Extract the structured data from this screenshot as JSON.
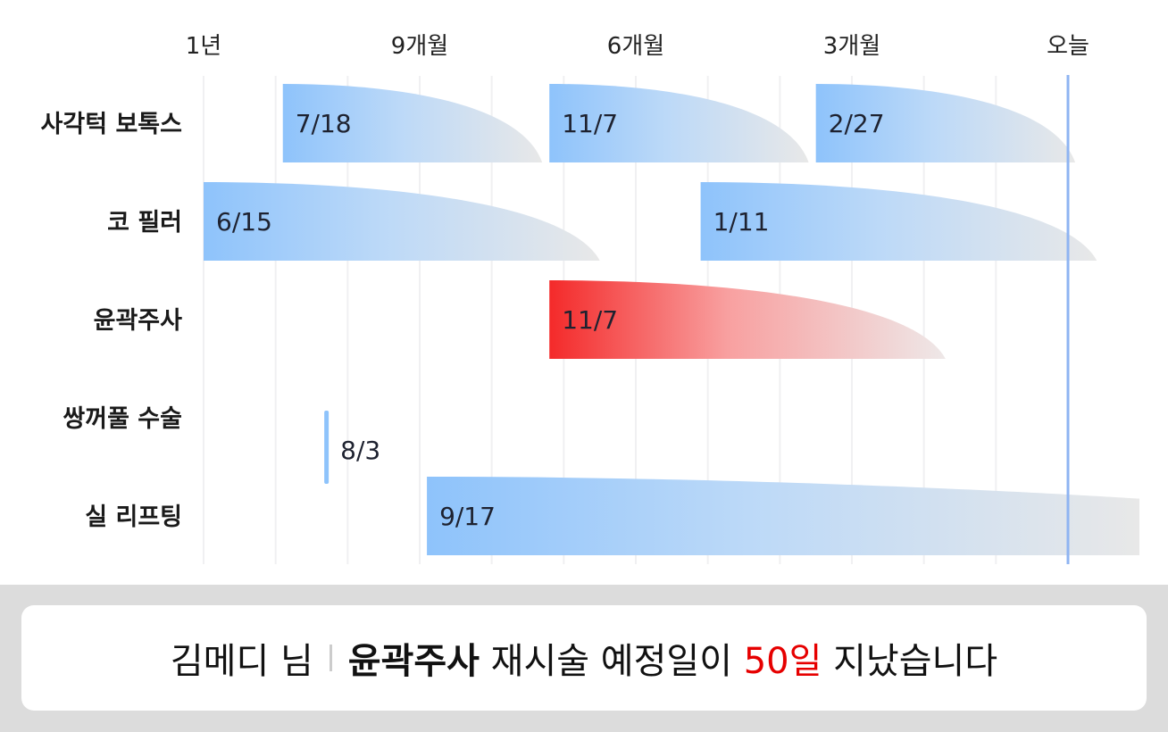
{
  "chart_data": {
    "type": "timeline",
    "x_axis": {
      "unit": "months_ago",
      "range": [
        12,
        0
      ],
      "ticks": [
        {
          "label": "1년",
          "months_ago": 12
        },
        {
          "label": "9개월",
          "months_ago": 9
        },
        {
          "label": "6개월",
          "months_ago": 6
        },
        {
          "label": "3개월",
          "months_ago": 3
        },
        {
          "label": "오늘",
          "months_ago": 0
        }
      ]
    },
    "grid": "monthly vertical",
    "today_line_color": "#8fb4f2",
    "colors": {
      "normal": "#8ec3fb",
      "highlight": "#f42a2a",
      "fade": "#e8e8e8",
      "highlight_label": "#e84040"
    },
    "rows": [
      {
        "label": "사각턱 보톡스",
        "highlight": false,
        "events": [
          {
            "date": "7/18",
            "months_ago": 10.9,
            "duration_months": 3.6
          },
          {
            "date": "11/7",
            "months_ago": 7.2,
            "duration_months": 3.6
          },
          {
            "date": "2/27",
            "months_ago": 3.5,
            "duration_months": 3.6
          }
        ]
      },
      {
        "label": "코 필러",
        "highlight": false,
        "events": [
          {
            "date": "6/15",
            "months_ago": 12.0,
            "duration_months": 5.5
          },
          {
            "date": "1/11",
            "months_ago": 5.1,
            "duration_months": 5.5
          }
        ]
      },
      {
        "label": "윤곽주사",
        "highlight": true,
        "events": [
          {
            "date": "11/7",
            "months_ago": 7.2,
            "duration_months": 5.5
          }
        ]
      },
      {
        "label": "쌍꺼풀 수술",
        "highlight": false,
        "events": [
          {
            "date": "8/3",
            "months_ago": 10.3,
            "duration_months": 0
          }
        ]
      },
      {
        "label": "실 리프팅",
        "highlight": false,
        "events": [
          {
            "date": "9/17",
            "months_ago": 8.9,
            "duration_months": 9.9
          }
        ]
      }
    ]
  },
  "notice": {
    "user": "김메디 님",
    "procedure": "윤곽주사",
    "text_before": " 재시술 예정일이 ",
    "days": "50일",
    "text_after": " 지났습니다"
  }
}
